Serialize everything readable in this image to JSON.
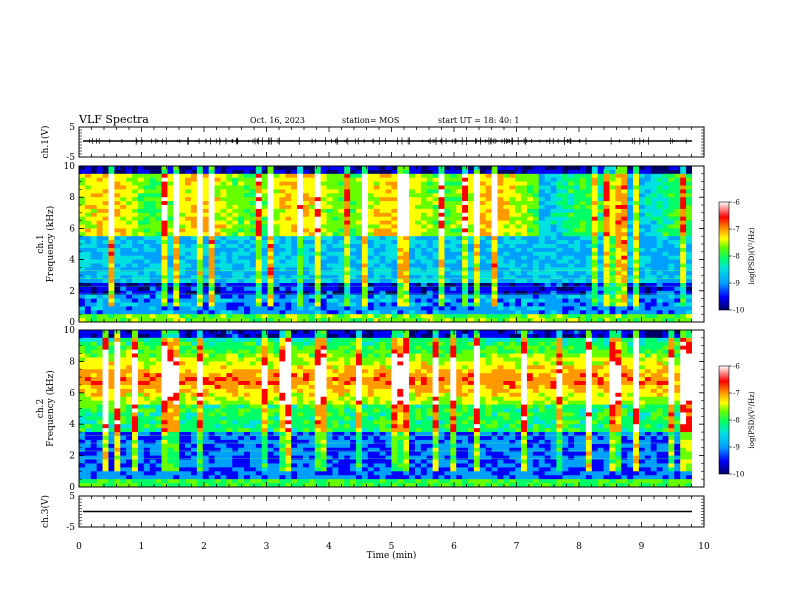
{
  "header": {
    "title": "VLF Spectra",
    "date": "Oct. 16, 2023",
    "station": "station= MOS",
    "start": "start  UT =   18: 40: 1"
  },
  "colors": {
    "scale": [
      "#000066",
      "#0000ff",
      "#00a0ff",
      "#00e0e0",
      "#00ff66",
      "#66ff00",
      "#ffff00",
      "#ff9900",
      "#ff0000",
      "#ffffff"
    ]
  },
  "chart_data": [
    {
      "type": "line",
      "name": "ch1-waveform",
      "ylabel": "ch.1(V)",
      "ylim": [
        -5,
        5
      ],
      "yticks": [
        "5",
        "-5"
      ],
      "x": [
        0,
        10
      ],
      "y": [
        0,
        0
      ]
    },
    {
      "type": "heatmap",
      "name": "ch1-spectrogram",
      "ylabel": "ch.1\nFrequency (kHz)",
      "ylim": [
        0,
        10
      ],
      "yticks": [
        "0",
        "2",
        "4",
        "6",
        "8",
        "10"
      ],
      "xlim": [
        0,
        10
      ],
      "colorbar": {
        "label": "log(PSD)(V²/Hz)",
        "range": [
          -10,
          -6
        ],
        "ticks": [
          "-6",
          "-7",
          "-8",
          "-9",
          "-10"
        ]
      }
    },
    {
      "type": "heatmap",
      "name": "ch2-spectrogram",
      "ylabel": "ch.2\nFrequency (kHz)",
      "ylim": [
        0,
        10
      ],
      "yticks": [
        "0",
        "2",
        "4",
        "6",
        "8",
        "10"
      ],
      "xlim": [
        0,
        10
      ],
      "colorbar": {
        "label": "log(PSD)(V²/Hz)",
        "range": [
          -10,
          -6
        ],
        "ticks": [
          "-6",
          "-7",
          "-8",
          "-9",
          "-10"
        ]
      }
    },
    {
      "type": "line",
      "name": "ch3-waveform",
      "ylabel": "ch.3(V)",
      "ylim": [
        -5,
        5
      ],
      "yticks": [
        "5",
        "-5"
      ],
      "x": [
        0,
        10
      ],
      "y": [
        0,
        0
      ]
    }
  ],
  "xaxis": {
    "label": "Time  (min)",
    "ticks": [
      "0",
      "1",
      "2",
      "3",
      "4",
      "5",
      "6",
      "7",
      "8",
      "9",
      "10"
    ],
    "range": [
      0,
      10
    ]
  }
}
